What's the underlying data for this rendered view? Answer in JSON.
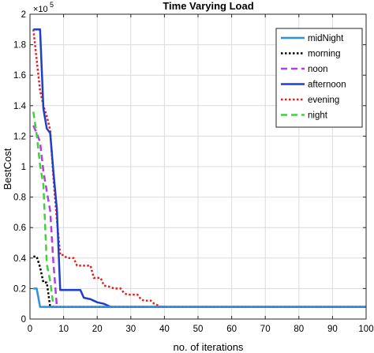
{
  "chart_data": {
    "type": "line",
    "title": "Time Varying Load",
    "xlabel": "no. of iterations",
    "ylabel": "BestCost",
    "y_multiplier": "×10",
    "y_multiplier_exp": "5",
    "xlim": [
      0,
      100
    ],
    "ylim": [
      0,
      2
    ],
    "x_ticks": [
      "0",
      "10",
      "20",
      "30",
      "40",
      "50",
      "60",
      "70",
      "80",
      "90",
      "100"
    ],
    "y_ticks": [
      "0",
      "0.2",
      "0.4",
      "0.6",
      "0.8",
      "1",
      "1.2",
      "1.4",
      "1.6",
      "1.8",
      "2"
    ],
    "grid": true,
    "legend_position": "top-right",
    "series": [
      {
        "name": "midNight",
        "color": "#2f8fe0",
        "style": "solid",
        "points": [
          [
            1,
            0.2
          ],
          [
            2,
            0.2
          ],
          [
            3,
            0.08
          ],
          [
            100,
            0.08
          ]
        ]
      },
      {
        "name": "morning",
        "color": "#000000",
        "style": "dotted",
        "points": [
          [
            1,
            0.41
          ],
          [
            2,
            0.41
          ],
          [
            3,
            0.34
          ],
          [
            4,
            0.24
          ],
          [
            5,
            0.24
          ],
          [
            6,
            0.08
          ],
          [
            100,
            0.08
          ]
        ]
      },
      {
        "name": "noon",
        "color": "#b040d8",
        "style": "dashed",
        "points": [
          [
            1,
            1.27
          ],
          [
            2,
            1.22
          ],
          [
            3,
            1.16
          ],
          [
            4,
            0.97
          ],
          [
            5,
            0.84
          ],
          [
            6,
            0.71
          ],
          [
            7,
            0.36
          ],
          [
            8,
            0.08
          ],
          [
            100,
            0.08
          ]
        ]
      },
      {
        "name": "afternoon",
        "color": "#1f3fc8",
        "style": "solid",
        "points": [
          [
            1,
            1.9
          ],
          [
            3,
            1.9
          ],
          [
            4,
            1.38
          ],
          [
            5,
            1.25
          ],
          [
            6,
            1.22
          ],
          [
            7,
            0.96
          ],
          [
            8,
            0.72
          ],
          [
            9,
            0.19
          ],
          [
            10,
            0.19
          ],
          [
            15,
            0.19
          ],
          [
            16,
            0.14
          ],
          [
            18,
            0.13
          ],
          [
            19,
            0.12
          ],
          [
            20,
            0.11
          ],
          [
            22,
            0.1
          ],
          [
            23,
            0.09
          ],
          [
            24,
            0.08
          ],
          [
            100,
            0.08
          ]
        ]
      },
      {
        "name": "evening",
        "color": "#e02020",
        "style": "dotted",
        "points": [
          [
            1,
            1.9
          ],
          [
            2,
            1.7
          ],
          [
            3,
            1.5
          ],
          [
            4,
            1.4
          ],
          [
            5,
            1.33
          ],
          [
            6,
            1.24
          ],
          [
            7,
            0.92
          ],
          [
            8,
            0.65
          ],
          [
            9,
            0.42
          ],
          [
            10,
            0.42
          ],
          [
            11,
            0.4
          ],
          [
            13,
            0.4
          ],
          [
            14,
            0.35
          ],
          [
            18,
            0.35
          ],
          [
            19,
            0.27
          ],
          [
            21,
            0.27
          ],
          [
            22,
            0.22
          ],
          [
            24,
            0.21
          ],
          [
            25,
            0.2
          ],
          [
            27,
            0.2
          ],
          [
            28,
            0.17
          ],
          [
            29,
            0.16
          ],
          [
            32,
            0.16
          ],
          [
            33,
            0.13
          ],
          [
            34,
            0.12
          ],
          [
            36,
            0.12
          ],
          [
            37,
            0.1
          ],
          [
            38,
            0.09
          ],
          [
            39,
            0.08
          ],
          [
            100,
            0.08
          ]
        ]
      },
      {
        "name": "night",
        "color": "#40d040",
        "style": "dashed",
        "points": [
          [
            1,
            1.36
          ],
          [
            2,
            1.21
          ],
          [
            3,
            1.01
          ],
          [
            4,
            0.88
          ],
          [
            5,
            0.36
          ],
          [
            6,
            0.25
          ],
          [
            7,
            0.08
          ],
          [
            100,
            0.08
          ]
        ]
      }
    ]
  }
}
